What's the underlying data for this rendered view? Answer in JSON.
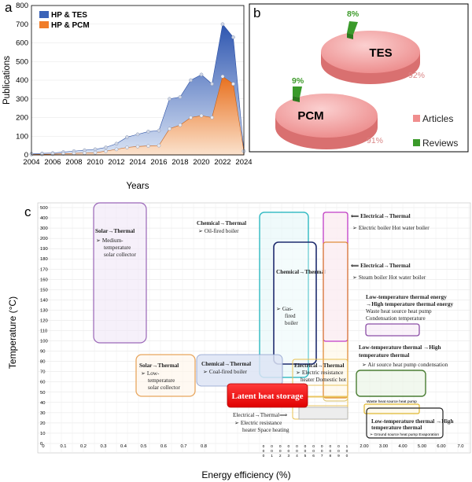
{
  "panels": {
    "a": "a",
    "b": "b",
    "c": "c"
  },
  "chart_data": [
    {
      "type": "area",
      "panel": "a",
      "ylabel": "Publications",
      "xlabel": "Years",
      "ylim": [
        0,
        800
      ],
      "yticks": [
        0,
        100,
        200,
        300,
        400,
        500,
        600,
        700,
        800
      ],
      "xlim": [
        2004,
        2024
      ],
      "xticks": [
        "2004",
        "2006",
        "2008",
        "2010",
        "2012",
        "2014",
        "2016",
        "2018",
        "2020",
        "2022",
        "2024"
      ],
      "legend_position": "top-left",
      "x": [
        2004,
        2005,
        2006,
        2007,
        2008,
        2009,
        2010,
        2011,
        2012,
        2013,
        2014,
        2015,
        2016,
        2017,
        2018,
        2019,
        2020,
        2021,
        2022,
        2023,
        2024
      ],
      "series": [
        {
          "name": "HP & TES",
          "color": "#3b63b8",
          "values": [
            5,
            8,
            10,
            15,
            20,
            25,
            30,
            40,
            60,
            95,
            110,
            125,
            130,
            300,
            310,
            400,
            430,
            380,
            700,
            630,
            20
          ]
        },
        {
          "name": "HP & PCM",
          "color": "#f07d2a",
          "values": [
            2,
            3,
            4,
            6,
            8,
            10,
            12,
            20,
            30,
            40,
            45,
            48,
            50,
            140,
            160,
            200,
            210,
            200,
            420,
            380,
            20
          ]
        }
      ]
    },
    {
      "type": "pie",
      "panel": "b",
      "legend": [
        {
          "name": "Articles",
          "color": "#f08e8e"
        },
        {
          "name": "Reviews",
          "color": "#3a9a2a"
        }
      ],
      "pies": [
        {
          "label": "TES",
          "slices": [
            {
              "name": "Articles",
              "value": 92,
              "text": "92%"
            },
            {
              "name": "Reviews",
              "value": 8,
              "text": "8%"
            }
          ]
        },
        {
          "label": "PCM",
          "slices": [
            {
              "name": "Articles",
              "value": 91,
              "text": "91%"
            },
            {
              "name": "Reviews",
              "value": 9,
              "text": "9%"
            }
          ]
        }
      ]
    },
    {
      "type": "diagram",
      "panel": "c",
      "ylabel": "Temperature (°C)",
      "xlabel": "Energy efficiency (%)",
      "yticks": [
        "0",
        "10",
        "20",
        "30",
        "40",
        "50",
        "60",
        "70",
        "80",
        "90",
        "100",
        "110",
        "120",
        "130",
        "140",
        "150",
        "160",
        "170",
        "180",
        "190",
        "200",
        "300",
        "400",
        "500"
      ],
      "xticks_left": [
        "0",
        "0.1",
        "0.2",
        "0.3",
        "0.4",
        "0.5",
        "0.6",
        "0.7",
        "0.8"
      ],
      "xticks_mid": [
        "0.00",
        "0.01",
        "0.02",
        "0.03",
        "0.04",
        "0.05",
        "0.06",
        "0.07",
        "0.08",
        "0.09",
        "1.00"
      ],
      "xticks_right": [
        "2.00",
        "3.00",
        "4.00",
        "5.00",
        "6.00",
        "7.0"
      ],
      "boxes": [
        {
          "id": "solar-medium",
          "title": "Solar→Thermal",
          "lines": [
            "➢ Medium-",
            "temperature",
            "solar collector"
          ]
        },
        {
          "id": "chem-oil",
          "title": "Chemical→Thermal",
          "lines": [
            "➢ Oil-fired boiler"
          ]
        },
        {
          "id": "elec-hotwater",
          "title": "⟸ Electrical→Thermal",
          "lines": [
            "➢ Electric boiler Hot water boiler"
          ]
        },
        {
          "id": "elec-steam",
          "title": "⟸ Electrical→Thermal",
          "lines": [
            "➢ Steam boiler Hot water boiler"
          ]
        },
        {
          "id": "chem-gas",
          "title": "Chemical→Thermal",
          "lines": [
            "➢ Gas-",
            "fired",
            "boiler"
          ]
        },
        {
          "id": "lowhigh-waste",
          "title": "Low-temperature thermal energy →High temperature thermal energy",
          "lines": [
            "Waste heat source heat pump",
            "Condensation temperature"
          ]
        },
        {
          "id": "lowhigh-air",
          "title": "Low-temperature thermal →High temperature thermal",
          "lines": [
            "➢ Air source heat pump condensation"
          ]
        },
        {
          "id": "solar-low",
          "title": "Solar→Thermal",
          "lines": [
            "➢ Low-",
            "temperature",
            "solar collector"
          ]
        },
        {
          "id": "chem-coal",
          "title": "Chemical→Thermal",
          "lines": [
            "➢ Coal-fired boiler"
          ]
        },
        {
          "id": "elec-resist-domestic",
          "title": "Electrical→Thermal",
          "lines": [
            "➢ Electric resistance",
            "heater Domestic hot"
          ]
        },
        {
          "id": "latent",
          "title": "Latent heat storage",
          "lines": []
        },
        {
          "id": "elec-space",
          "title": "Electrical→Thermal⟹",
          "lines": [
            "➢ Electric resistance",
            "heater Space heating"
          ]
        },
        {
          "id": "waste-heat-pump",
          "title": "",
          "lines": [
            "Waste heat source heat pump"
          ]
        },
        {
          "id": "lowhigh-ground",
          "title": "Low-temperature thermal →High temperature thermal",
          "lines": [
            "➢ Ground source heat pump Evaporation"
          ]
        }
      ]
    }
  ]
}
